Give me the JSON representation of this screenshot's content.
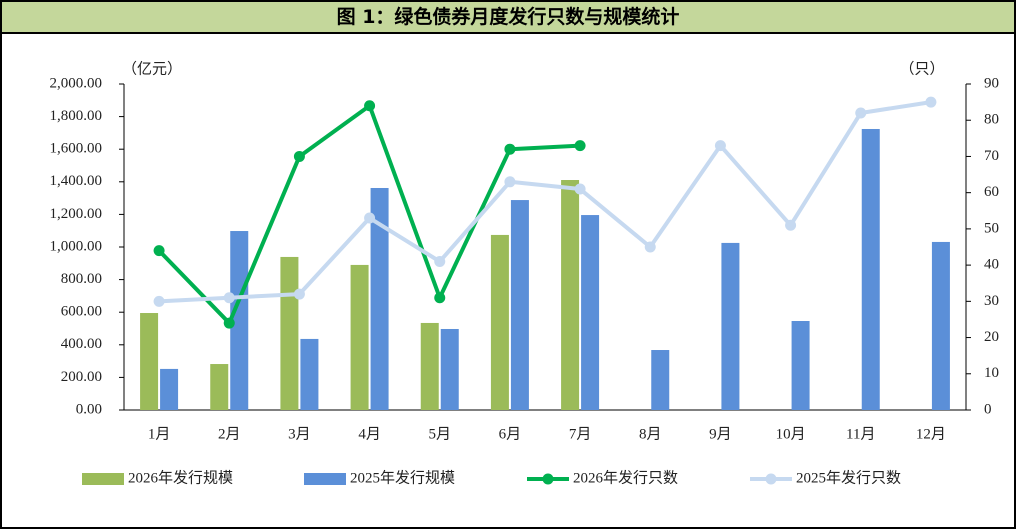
{
  "chart_data": {
    "type": "combo",
    "title": "图 1：绿色债券月度发行只数与规模统计",
    "y_unit": "（亿元）",
    "y2_unit": "（只）",
    "categories": [
      "1月",
      "2月",
      "3月",
      "4月",
      "5月",
      "6月",
      "7月",
      "8月",
      "9月",
      "10月",
      "11月",
      "12月"
    ],
    "ylim": [
      0,
      2000
    ],
    "yticks": [
      {
        "value": 0,
        "label": "0.00"
      },
      {
        "value": 200,
        "label": "200.00"
      },
      {
        "value": 400,
        "label": "400.00"
      },
      {
        "value": 600,
        "label": "600.00"
      },
      {
        "value": 800,
        "label": "800.00"
      },
      {
        "value": 1000,
        "label": "1,000.00"
      },
      {
        "value": 1200,
        "label": "1,200.00"
      },
      {
        "value": 1400,
        "label": "1,400.00"
      },
      {
        "value": 1600,
        "label": "1,600.00"
      },
      {
        "value": 1800,
        "label": "1,800.00"
      },
      {
        "value": 2000,
        "label": "2,000.00"
      }
    ],
    "y2lim": [
      0,
      90
    ],
    "y2ticks": [
      0,
      10,
      20,
      30,
      40,
      50,
      60,
      70,
      80,
      90
    ],
    "series": [
      {
        "name": "2026年发行规模",
        "type": "bar",
        "color": "#9bbb59",
        "values": [
          595,
          282,
          939,
          890,
          534,
          1074,
          1411,
          null,
          null,
          null,
          null,
          null
        ]
      },
      {
        "name": "2025年发行规模",
        "type": "bar",
        "color": "#5b8fd8",
        "values": [
          252,
          1098,
          436,
          1362,
          497,
          1288,
          1196,
          368,
          1025,
          546,
          1724,
          1031
        ]
      },
      {
        "name": "2026年发行只数",
        "type": "line",
        "axis": "y2",
        "color": "#00b050",
        "values": [
          44,
          24,
          70,
          84,
          31,
          72,
          73,
          null,
          null,
          null,
          null,
          null
        ]
      },
      {
        "name": "2025年发行只数",
        "type": "line",
        "axis": "y2",
        "color": "#c6d9f0",
        "values": [
          30,
          31,
          32,
          53,
          41,
          63,
          61,
          45,
          73,
          51,
          82,
          85
        ]
      }
    ]
  }
}
